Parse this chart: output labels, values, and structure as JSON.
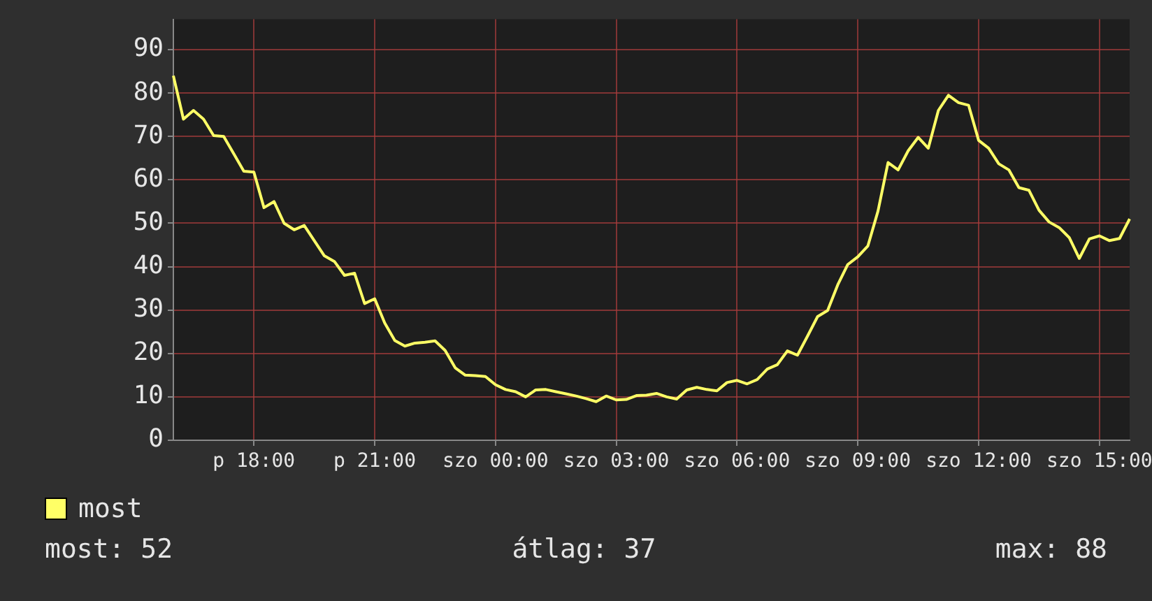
{
  "chart_data": {
    "type": "line",
    "categories": [
      null,
      null,
      null,
      null,
      null,
      null,
      null,
      null,
      "p 18:00",
      null,
      null,
      null,
      null,
      null,
      null,
      null,
      null,
      null,
      null,
      null,
      "p 21:00",
      null,
      null,
      null,
      null,
      null,
      null,
      null,
      null,
      null,
      null,
      null,
      "szo 00:00",
      null,
      null,
      null,
      null,
      null,
      null,
      null,
      null,
      null,
      null,
      null,
      "szo 03:00",
      null,
      null,
      null,
      null,
      null,
      null,
      null,
      null,
      null,
      null,
      null,
      "szo 06:00",
      null,
      null,
      null,
      null,
      null,
      null,
      null,
      null,
      null,
      null,
      null,
      "szo 09:00",
      null,
      null,
      null,
      null,
      null,
      null,
      null,
      null,
      null,
      null,
      null,
      "szo 12:00",
      null,
      null,
      null,
      null,
      null,
      null,
      null,
      null,
      null,
      null,
      null,
      "szo 15:00",
      null,
      null,
      null
    ],
    "series": [
      {
        "name": "most",
        "color": "#ffff66",
        "values": [
          84,
          74,
          76,
          74,
          70.2,
          70,
          66,
          62,
          61.8,
          53.6,
          55,
          50,
          48.5,
          49.5,
          46,
          42.5,
          41.2,
          38,
          38.5,
          31.5,
          32.6,
          27,
          23,
          21.7,
          22.4,
          22.6,
          22.9,
          20.7,
          16.7,
          15,
          14.9,
          14.7,
          12.8,
          11.7,
          11.2,
          10,
          11.6,
          11.7,
          11.2,
          10.7,
          10.2,
          9.6,
          8.9,
          10.2,
          9.3,
          9.4,
          10.3,
          10.4,
          10.8,
          10,
          9.5,
          11.6,
          12.2,
          11.7,
          11.4,
          13.3,
          13.8,
          13,
          14,
          16.4,
          17.4,
          20.6,
          19.6,
          24,
          28.5,
          29.9,
          35.8,
          40.5,
          42.3,
          44.8,
          52.8,
          64,
          62.3,
          66.7,
          69.8,
          67.3,
          76,
          79.5,
          77.8,
          77.2,
          69.1,
          67.3,
          63.7,
          62.3,
          58.2,
          57.6,
          53,
          50.3,
          49,
          46.7,
          41.9,
          46.4,
          47.1,
          46,
          46.5,
          51
        ]
      }
    ],
    "ylim": [
      0,
      97
    ],
    "yticks": [
      0,
      10,
      20,
      30,
      40,
      50,
      60,
      70,
      80,
      90
    ],
    "grid": true,
    "legend": "bottom left",
    "marker": "none",
    "line_style": "solid",
    "annotations": [
      "most: 52",
      "átlag: 37",
      "max: 88"
    ]
  }
}
